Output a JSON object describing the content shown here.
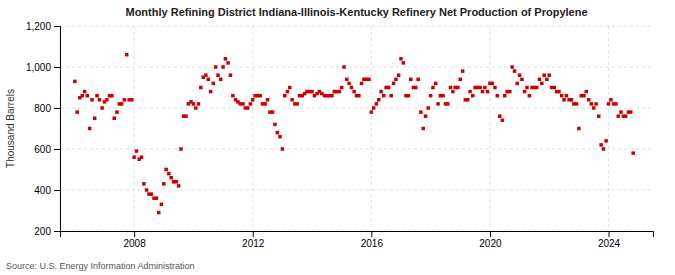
{
  "chart_data": {
    "type": "scatter",
    "title": "Monthly Refining District Indiana-Illinois-Kentucky Refinery Net Production of Propylene",
    "y_label": "Thousand Barrels",
    "annotations": [
      "Source: U.S. Energy Information Administration"
    ],
    "color": "#cc0000",
    "marker": "square",
    "grid": true,
    "xlim": [
      2005.5,
      2025.5
    ],
    "xticks": [
      2008,
      2012,
      2016,
      2020,
      2024
    ],
    "ylim": [
      200,
      1200
    ],
    "yticks": [
      200,
      400,
      600,
      800,
      {
        "value": 1000,
        "label": "1,000"
      },
      {
        "value": 1200,
        "label": "1,200"
      }
    ],
    "x": [
      2006.0,
      2006.08,
      2006.17,
      2006.25,
      2006.33,
      2006.42,
      2006.5,
      2006.58,
      2006.67,
      2006.75,
      2006.83,
      2006.92,
      2007.0,
      2007.08,
      2007.17,
      2007.25,
      2007.33,
      2007.42,
      2007.5,
      2007.58,
      2007.67,
      2007.75,
      2007.83,
      2007.92,
      2008.0,
      2008.08,
      2008.17,
      2008.25,
      2008.33,
      2008.42,
      2008.5,
      2008.58,
      2008.67,
      2008.75,
      2008.83,
      2008.92,
      2009.0,
      2009.08,
      2009.17,
      2009.25,
      2009.33,
      2009.42,
      2009.5,
      2009.58,
      2009.67,
      2009.75,
      2009.83,
      2009.92,
      2010.0,
      2010.08,
      2010.17,
      2010.25,
      2010.33,
      2010.42,
      2010.5,
      2010.58,
      2010.67,
      2010.75,
      2010.83,
      2010.92,
      2011.0,
      2011.08,
      2011.17,
      2011.25,
      2011.33,
      2011.42,
      2011.5,
      2011.58,
      2011.67,
      2011.75,
      2011.83,
      2011.92,
      2012.0,
      2012.08,
      2012.17,
      2012.25,
      2012.33,
      2012.42,
      2012.5,
      2012.58,
      2012.67,
      2012.75,
      2012.83,
      2012.92,
      2013.0,
      2013.08,
      2013.17,
      2013.25,
      2013.33,
      2013.42,
      2013.5,
      2013.58,
      2013.67,
      2013.75,
      2013.83,
      2013.92,
      2014.0,
      2014.08,
      2014.17,
      2014.25,
      2014.33,
      2014.42,
      2014.5,
      2014.58,
      2014.67,
      2014.75,
      2014.83,
      2014.92,
      2015.0,
      2015.08,
      2015.17,
      2015.25,
      2015.33,
      2015.42,
      2015.5,
      2015.58,
      2015.67,
      2015.75,
      2015.83,
      2015.92,
      2016.0,
      2016.08,
      2016.17,
      2016.25,
      2016.33,
      2016.42,
      2016.5,
      2016.58,
      2016.67,
      2016.75,
      2016.83,
      2016.92,
      2017.0,
      2017.08,
      2017.17,
      2017.25,
      2017.33,
      2017.42,
      2017.5,
      2017.58,
      2017.67,
      2017.75,
      2017.83,
      2017.92,
      2018.0,
      2018.08,
      2018.17,
      2018.25,
      2018.33,
      2018.42,
      2018.5,
      2018.58,
      2018.67,
      2018.75,
      2018.83,
      2018.92,
      2019.0,
      2019.08,
      2019.17,
      2019.25,
      2019.33,
      2019.42,
      2019.5,
      2019.58,
      2019.67,
      2019.75,
      2019.83,
      2019.92,
      2020.0,
      2020.08,
      2020.17,
      2020.25,
      2020.33,
      2020.42,
      2020.5,
      2020.58,
      2020.67,
      2020.75,
      2020.83,
      2020.92,
      2021.0,
      2021.08,
      2021.17,
      2021.25,
      2021.33,
      2021.42,
      2021.5,
      2021.58,
      2021.67,
      2021.75,
      2021.83,
      2021.92,
      2022.0,
      2022.08,
      2022.17,
      2022.25,
      2022.33,
      2022.42,
      2022.5,
      2022.58,
      2022.67,
      2022.75,
      2022.83,
      2022.92,
      2023.0,
      2023.08,
      2023.17,
      2023.25,
      2023.33,
      2023.42,
      2023.5,
      2023.58,
      2023.67,
      2023.75,
      2023.83,
      2023.92,
      2024.0,
      2024.08,
      2024.17,
      2024.25,
      2024.33,
      2024.42,
      2024.5,
      2024.58,
      2024.67,
      2024.75,
      2024.83
    ],
    "values": [
      930,
      780,
      850,
      860,
      880,
      860,
      700,
      840,
      750,
      860,
      840,
      800,
      830,
      840,
      860,
      860,
      750,
      780,
      820,
      820,
      840,
      1060,
      840,
      840,
      560,
      590,
      550,
      560,
      430,
      400,
      380,
      380,
      360,
      360,
      290,
      330,
      430,
      500,
      480,
      460,
      440,
      440,
      420,
      600,
      760,
      760,
      820,
      830,
      820,
      800,
      820,
      900,
      950,
      960,
      940,
      880,
      920,
      1000,
      960,
      940,
      1000,
      1040,
      1020,
      960,
      860,
      840,
      830,
      820,
      820,
      800,
      800,
      820,
      840,
      860,
      860,
      860,
      820,
      820,
      840,
      780,
      780,
      720,
      680,
      660,
      600,
      860,
      880,
      900,
      840,
      820,
      820,
      860,
      860,
      870,
      880,
      880,
      880,
      860,
      870,
      880,
      870,
      860,
      860,
      860,
      860,
      880,
      880,
      880,
      900,
      1000,
      940,
      920,
      900,
      880,
      860,
      860,
      920,
      940,
      940,
      940,
      780,
      800,
      820,
      840,
      880,
      860,
      900,
      900,
      860,
      920,
      940,
      960,
      1040,
      1020,
      860,
      860,
      940,
      900,
      900,
      940,
      780,
      700,
      760,
      800,
      860,
      900,
      920,
      820,
      860,
      860,
      820,
      820,
      900,
      880,
      900,
      900,
      940,
      980,
      840,
      840,
      880,
      860,
      900,
      900,
      900,
      880,
      900,
      880,
      920,
      920,
      900,
      860,
      760,
      740,
      860,
      880,
      880,
      1000,
      980,
      920,
      960,
      940,
      880,
      900,
      860,
      900,
      900,
      900,
      940,
      920,
      960,
      940,
      960,
      900,
      900,
      880,
      880,
      860,
      840,
      860,
      840,
      840,
      820,
      820,
      700,
      860,
      860,
      880,
      840,
      820,
      800,
      820,
      760,
      620,
      600,
      640,
      820,
      840,
      820,
      820,
      760,
      780,
      760,
      760,
      780,
      780,
      580
    ]
  }
}
